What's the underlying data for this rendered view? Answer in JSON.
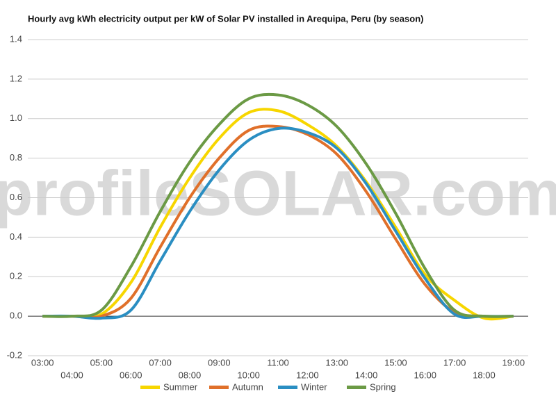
{
  "chart_data": {
    "type": "line",
    "title": "Hourly avg kWh electricity output per kW of Solar PV installed in Arequipa, Peru (by season)",
    "watermark": "profileSOLAR.com",
    "categories": [
      "03:00",
      "04:00",
      "05:00",
      "06:00",
      "07:00",
      "08:00",
      "09:00",
      "10:00",
      "11:00",
      "12:00",
      "13:00",
      "14:00",
      "15:00",
      "16:00",
      "17:00",
      "18:00",
      "19:00"
    ],
    "series": [
      {
        "name": "Summer",
        "color": "#f7d600",
        "values": [
          0,
          0,
          0.01,
          0.17,
          0.45,
          0.7,
          0.9,
          1.03,
          1.04,
          0.97,
          0.86,
          0.68,
          0.45,
          0.21,
          0.08,
          -0.01,
          0
        ]
      },
      {
        "name": "Autumn",
        "color": "#e0702a",
        "values": [
          0,
          0,
          0,
          0.09,
          0.35,
          0.6,
          0.8,
          0.94,
          0.96,
          0.92,
          0.82,
          0.63,
          0.39,
          0.16,
          0.02,
          0,
          0
        ]
      },
      {
        "name": "Winter",
        "color": "#2a8ec2",
        "values": [
          0,
          0,
          -0.01,
          0.03,
          0.28,
          0.53,
          0.74,
          0.89,
          0.95,
          0.93,
          0.85,
          0.67,
          0.43,
          0.19,
          0.01,
          0,
          0
        ]
      },
      {
        "name": "Spring",
        "color": "#6b9a45",
        "values": [
          0,
          0,
          0.03,
          0.25,
          0.53,
          0.78,
          0.97,
          1.1,
          1.12,
          1.07,
          0.96,
          0.77,
          0.52,
          0.24,
          0.03,
          0,
          0
        ]
      }
    ],
    "ylim": [
      -0.2,
      1.4
    ],
    "yticks": [
      -0.2,
      {
        "value": 0,
        "label": "0.0"
      },
      0.2,
      0.4,
      0.6,
      0.8,
      {
        "value": 1,
        "label": "1.0"
      },
      1.2,
      1.4
    ],
    "grid": true
  }
}
